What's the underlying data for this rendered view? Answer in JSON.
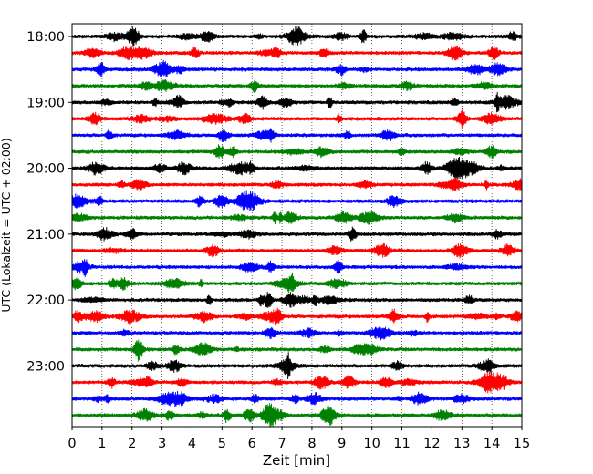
{
  "chart_data": {
    "type": "line",
    "title": "",
    "xlabel": "Zeit  [min]",
    "ylabel": "UTC (Lokalzeit = UTC + 02:00)",
    "xlim": [
      0,
      15
    ],
    "x_ticks": [
      "0",
      "1",
      "2",
      "3",
      "4",
      "5",
      "6",
      "7",
      "8",
      "9",
      "10",
      "11",
      "12",
      "13",
      "14",
      "15"
    ],
    "y_tick_labels": [
      "18:00",
      "19:00",
      "20:00",
      "21:00",
      "22:00",
      "23:00"
    ],
    "row_interval_minutes": 15,
    "grid_x": "dotted",
    "series_colors": [
      "#000000",
      "#ff0000",
      "#0000ff",
      "#008000"
    ],
    "rows": [
      "18:00",
      "18:15",
      "18:30",
      "18:45",
      "19:00",
      "19:15",
      "19:30",
      "19:45",
      "20:00",
      "20:15",
      "20:30",
      "20:45",
      "21:00",
      "21:15",
      "21:30",
      "21:45",
      "22:00",
      "22:15",
      "22:30",
      "22:45",
      "23:00",
      "23:15",
      "23:30",
      "23:45"
    ]
  }
}
